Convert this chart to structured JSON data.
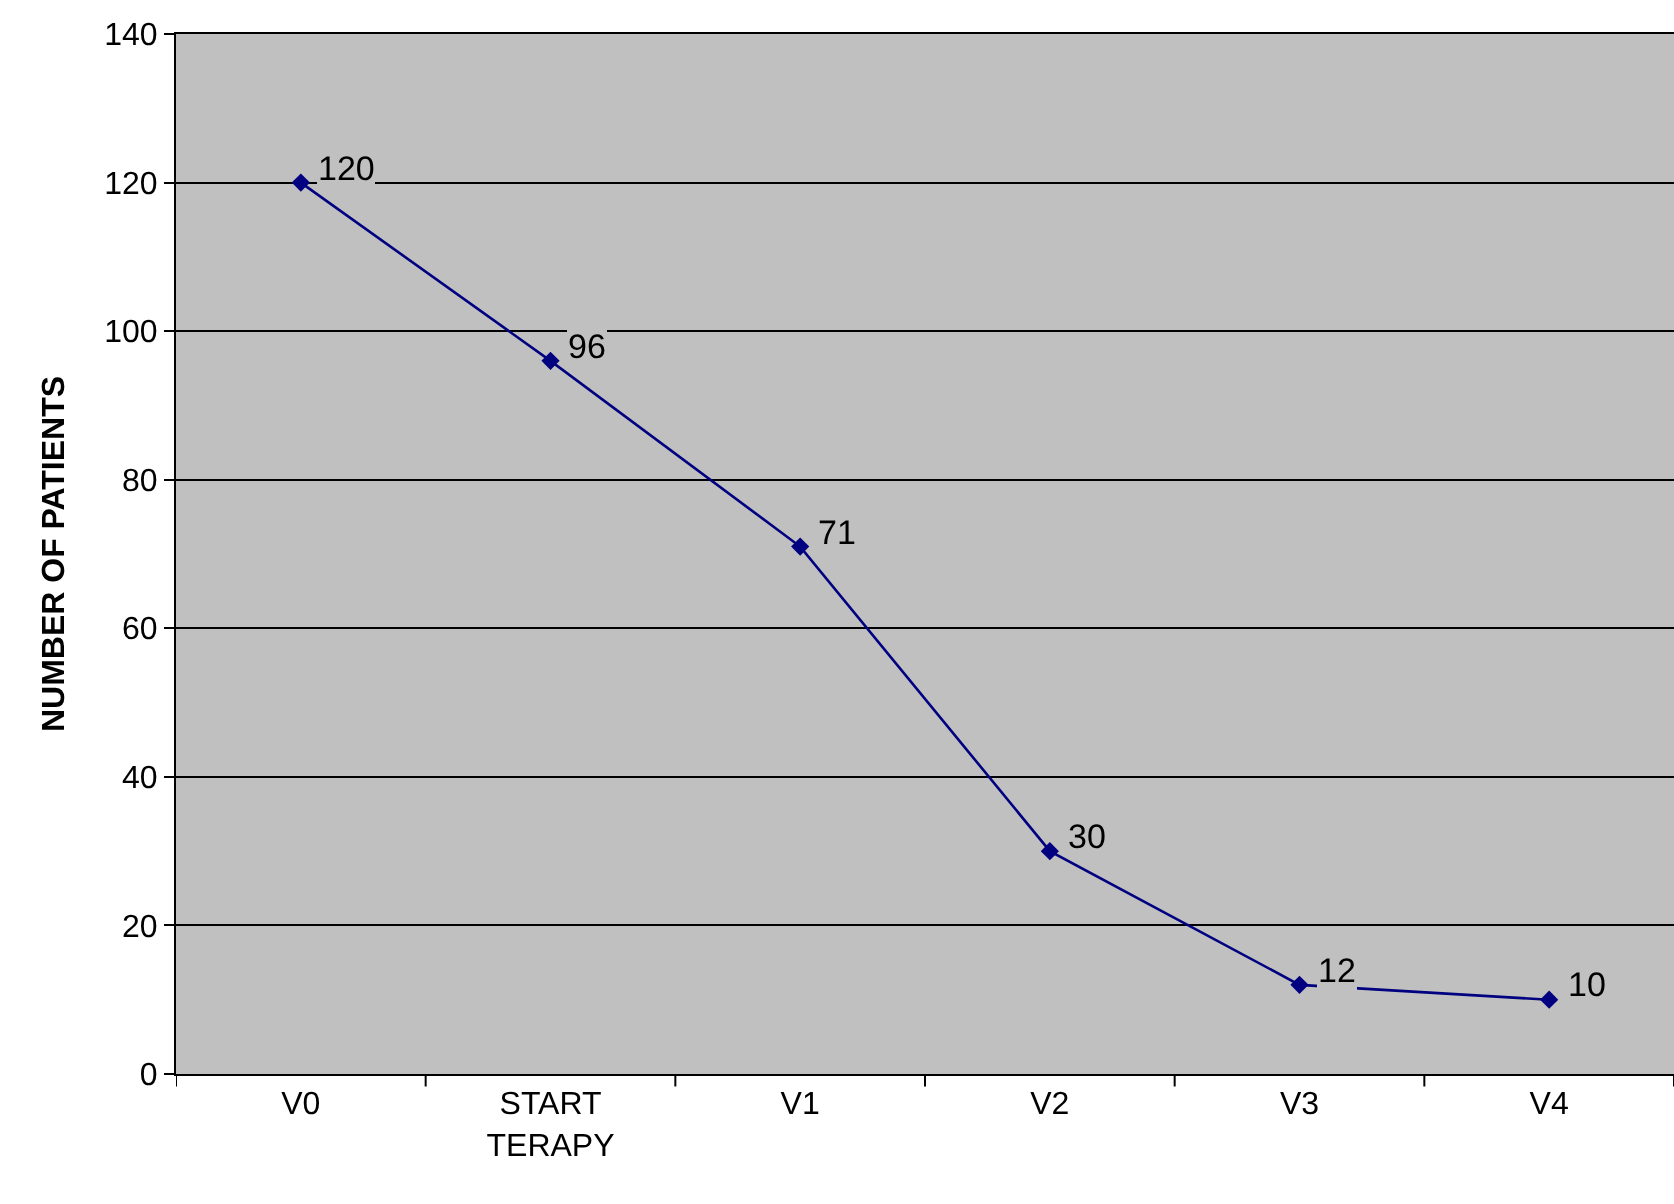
{
  "chart_data": {
    "type": "line",
    "ylabel": "NUMBER OF PATIENTS",
    "categories": [
      "V0",
      "START\nTERAPY",
      "V1",
      "V2",
      "V3",
      "V4"
    ],
    "series": [
      {
        "color": "#000080",
        "values": [
          120,
          96,
          71,
          30,
          12,
          10
        ]
      }
    ],
    "ylim": [
      0,
      140
    ],
    "yticks": [
      0,
      20,
      40,
      60,
      80,
      100,
      120,
      140
    ],
    "grid": "y",
    "marker": "diamond",
    "line_style": "solid",
    "data_labels": true
  }
}
